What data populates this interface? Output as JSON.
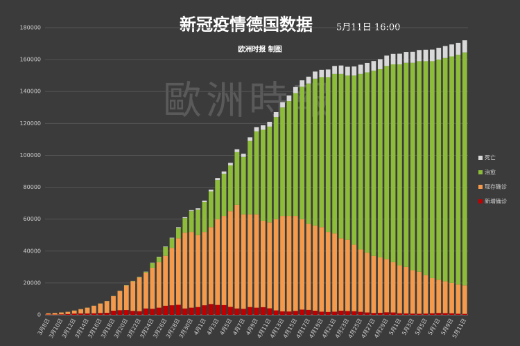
{
  "chart_data": {
    "type": "stacked_bar",
    "title": "新冠疫情德国数据",
    "date": "5月11日 16:00",
    "subtitle": "欧洲时报 制图",
    "watermark": "歐洲時報",
    "categories": [
      "3月8日",
      null,
      "3月10日",
      null,
      "3月12日",
      null,
      "3月14日",
      null,
      "3月16日",
      null,
      "3月18日",
      null,
      "3月20日",
      null,
      "3月22日",
      null,
      "3月24日",
      null,
      "3月26日",
      null,
      "3月28日",
      null,
      "3月30日",
      null,
      "4月1日",
      null,
      "4月3日",
      null,
      "4月5日",
      null,
      "4月7日",
      null,
      "4月9日",
      null,
      "4月11日",
      null,
      "4月13日",
      null,
      "4月15日",
      null,
      "4月17日",
      null,
      "4月19日",
      null,
      "4月21日",
      null,
      "4月23日",
      null,
      "4月25日",
      null,
      "4月27日",
      null,
      "4月29日",
      null,
      "5月1日",
      null,
      "5月3日",
      null,
      "5月5日",
      null,
      "5月7日",
      null,
      "5月9日",
      null,
      "5月11日"
    ],
    "series": [
      {
        "name": "新增确诊",
        "color": "#c00000",
        "values": [
          200,
          180,
          300,
          500,
          800,
          900,
          900,
          1000,
          1200,
          1300,
          2600,
          2900,
          3000,
          2500,
          2300,
          4000,
          3800,
          4500,
          5700,
          6000,
          6300,
          4000,
          4500,
          4900,
          6000,
          6800,
          6200,
          6100,
          5000,
          4000,
          3800,
          4900,
          4500,
          4800,
          4100,
          2800,
          2200,
          2100,
          2500,
          3300,
          3100,
          2600,
          2000,
          1800,
          2000,
          2600,
          2400,
          2300,
          1900,
          1500,
          1200,
          1300,
          1600,
          1500,
          1000,
          900,
          800,
          700,
          800,
          1000,
          1200,
          1100,
          1000,
          700,
          600
        ]
      },
      {
        "name": "现存确诊",
        "color": "#f39a4c",
        "values": [
          800,
          1020,
          1200,
          1400,
          1900,
          2700,
          3600,
          4700,
          5900,
          7300,
          9100,
          12100,
          15400,
          18500,
          21200,
          22500,
          25700,
          28500,
          31300,
          36000,
          41700,
          47500,
          47500,
          45100,
          46000,
          48200,
          53800,
          55900,
          60000,
          65000,
          59200,
          58100,
          58500,
          54200,
          53900,
          57200,
          59800,
          59900,
          59500,
          56700,
          53900,
          53400,
          53000,
          50200,
          49000,
          45400,
          44600,
          41700,
          39100,
          37500,
          35800,
          34700,
          33400,
          31500,
          30000,
          29100,
          27200,
          26300,
          24200,
          22000,
          20800,
          19900,
          19000,
          18300,
          17900
        ]
      },
      {
        "name": "治愈",
        "color": "#8dbb3a",
        "values": [
          20,
          20,
          20,
          20,
          20,
          50,
          50,
          50,
          60,
          60,
          100,
          100,
          200,
          200,
          300,
          500,
          3000,
          3200,
          5600,
          6000,
          6500,
          9200,
          13000,
          16000,
          18700,
          22400,
          24500,
          26400,
          28700,
          33000,
          36000,
          46000,
          52000,
          57000,
          60000,
          64000,
          68000,
          72000,
          77000,
          83000,
          88000,
          92000,
          94000,
          97000,
          100000,
          103000,
          103000,
          106000,
          110000,
          113000,
          116000,
          118000,
          121000,
          124000,
          126000,
          128000,
          130000,
          132000,
          134000,
          136000,
          138000,
          140000,
          142000,
          144000,
          146000
        ]
      },
      {
        "name": "死亡",
        "color": "#d9d9d9",
        "values": [
          0,
          2,
          2,
          3,
          6,
          8,
          9,
          12,
          15,
          20,
          30,
          40,
          60,
          80,
          90,
          120,
          150,
          200,
          270,
          340,
          430,
          530,
          640,
          780,
          930,
          1100,
          1300,
          1500,
          1600,
          1800,
          2000,
          2300,
          2600,
          2800,
          3000,
          3100,
          3300,
          3500,
          3800,
          4000,
          4300,
          4500,
          4600,
          4800,
          5000,
          5300,
          5500,
          5700,
          5800,
          5900,
          6100,
          6300,
          6500,
          6600,
          6700,
          6800,
          6900,
          7000,
          7200,
          7300,
          7400,
          7500,
          7500,
          7500,
          7600
        ]
      }
    ],
    "ylim": [
      0,
      180000
    ],
    "yticks": [
      0,
      20000,
      40000,
      60000,
      80000,
      100000,
      120000,
      140000,
      160000,
      180000
    ],
    "grid": true,
    "legend": "right"
  }
}
